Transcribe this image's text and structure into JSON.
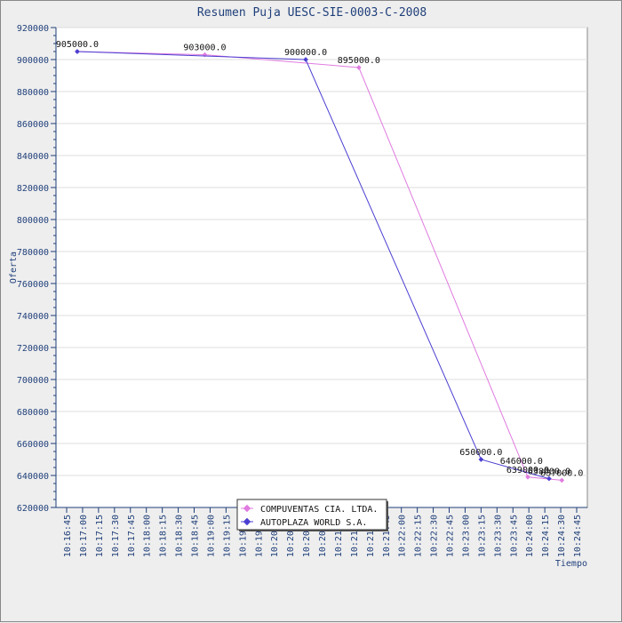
{
  "chart_data": {
    "type": "line",
    "title": "Resumen Puja UESC-SIE-0003-C-2008",
    "xlabel": "Tiempo",
    "ylabel": "Oferta",
    "ylim": [
      620000,
      920000
    ],
    "yticks": [
      620000,
      640000,
      660000,
      680000,
      700000,
      720000,
      740000,
      760000,
      780000,
      800000,
      820000,
      840000,
      860000,
      880000,
      900000,
      920000
    ],
    "xticks": [
      "10:16:45",
      "10:17:00",
      "10:17:15",
      "10:17:30",
      "10:17:45",
      "10:18:00",
      "10:18:15",
      "10:18:30",
      "10:18:45",
      "10:19:00",
      "10:19:15",
      "10:19:30",
      "10:19:45",
      "10:20:00",
      "10:20:15",
      "10:20:30",
      "10:20:45",
      "10:21:00",
      "10:21:15",
      "10:21:30",
      "10:21:45",
      "10:22:00",
      "10:22:15",
      "10:22:30",
      "10:22:45",
      "10:23:00",
      "10:23:15",
      "10:23:30",
      "10:23:45",
      "10:24:00",
      "10:24:15",
      "10:24:30",
      "10:24:45"
    ],
    "xlim": [
      "10:16:45",
      "10:24:45"
    ],
    "grid": true,
    "legend_position": "bottom-center",
    "series": [
      {
        "name": "COMPUVENTAS CIA. LTDA.",
        "color": "#e07be0",
        "x": [
          "10:16:55",
          "10:18:55",
          "10:21:20",
          "10:23:59",
          "10:24:31"
        ],
        "y": [
          905000,
          903000,
          895000,
          639000,
          637000
        ],
        "labels": [
          "905000.0",
          "903000.0",
          "895000.0",
          "639000.0",
          "637000.0"
        ]
      },
      {
        "name": "AUTOPLAZA WORLD S.A.",
        "color": "#4b3fd1",
        "x": [
          "10:16:55",
          "10:20:30",
          "10:23:15",
          "10:24:19"
        ],
        "y": [
          905000,
          900000,
          650000,
          638000
        ],
        "labels": [
          "",
          "900000.0",
          "650000.0",
          "638000.0"
        ]
      }
    ],
    "extra_labels": [
      {
        "text": "646000.0",
        "x": "10:23:53",
        "y": 646000
      }
    ]
  }
}
